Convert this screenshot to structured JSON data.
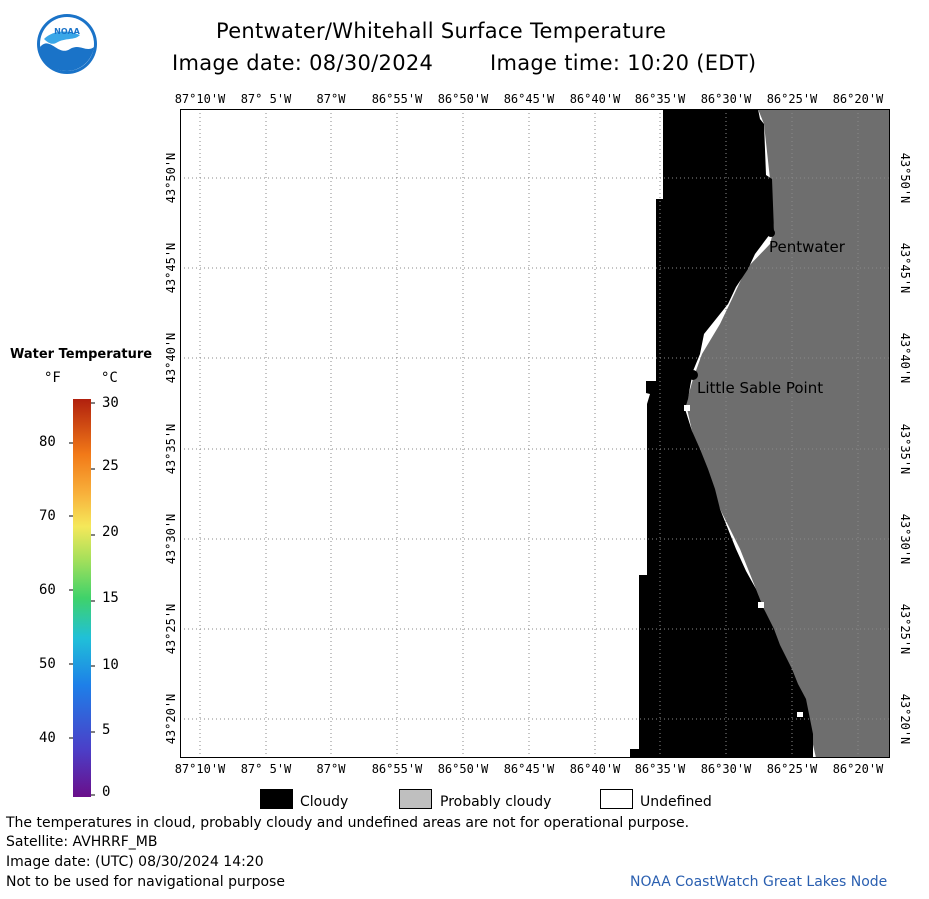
{
  "header": {
    "title": "Pentwater/Whitehall Surface Temperature",
    "image_date": "Image date: 08/30/2024",
    "image_time": "Image time: 10:20 (EDT)"
  },
  "logo": {
    "text": "NOAA",
    "colors": {
      "blue": "#1a73c8",
      "light": "#3aa7e8"
    }
  },
  "longitude_labels": [
    "87°10'W",
    "87° 5'W",
    "87°W",
    "86°55'W",
    "86°50'W",
    "86°45'W",
    "86°40'W",
    "86°35'W",
    "86°30'W",
    "86°25'W",
    "86°20'W"
  ],
  "latitude_labels": [
    "43°50'N",
    "43°45'N",
    "43°40'N",
    "43°35'N",
    "43°30'N",
    "43°25'N",
    "43°20'N"
  ],
  "places": {
    "pentwater": "Pentwater",
    "little_sable": "Little Sable Point"
  },
  "scale": {
    "title": "Water Temperature",
    "f_unit": "°F",
    "c_unit": "°C",
    "f_ticks": [
      "80",
      "70",
      "60",
      "50",
      "40"
    ],
    "c_ticks": [
      "30",
      "25",
      "20",
      "15",
      "10",
      "5",
      "0"
    ]
  },
  "legend": {
    "cloudy": "Cloudy",
    "probably_cloudy": "Probably cloudy",
    "undefined": "Undefined"
  },
  "footer": {
    "line1": "The temperatures in cloud, probably cloudy and undefined areas are not for operational purpose.",
    "line2": "Satellite: AVHRRF_MB",
    "line3": "Image date: (UTC) 08/30/2024  14:20",
    "line4": "Not to be used for navigational purpose",
    "credit": "NOAA CoastWatch Great Lakes Node"
  },
  "colors": {
    "cloud": "#000000",
    "probably_cloudy": "#6e6e6e",
    "undefined": "#ffffff",
    "credit": "#2a5fb0"
  }
}
